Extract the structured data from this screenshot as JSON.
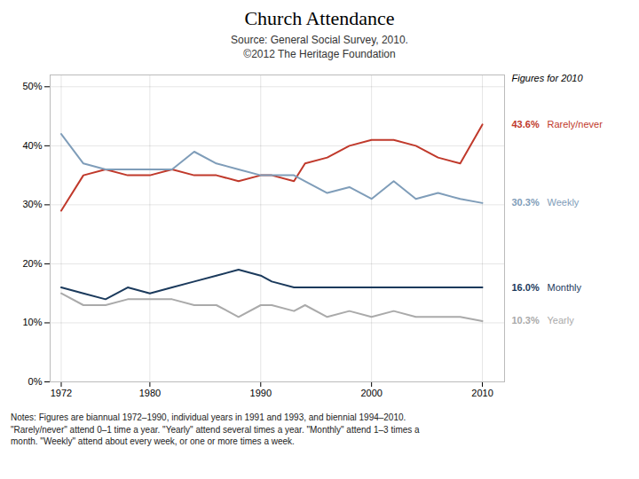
{
  "chart_data": {
    "type": "line",
    "title": "Church Attendance",
    "subtitle": [
      "Source: General Social Survey, 2010.",
      "©2012 The Heritage Foundation"
    ],
    "annotations": [
      "Figures for 2010"
    ],
    "caption": "Notes: Figures are biannual 1972–1990, individual years in 1991 and 1993, and biennial 1994–2010.\n\"Rarely/never\" attend 0–1 time a year. \"Yearly\" attend several times a year. \"Monthly\" attend 1–3 times a\nmonth. \"Weekly\" attend about every week, or one or more times a week.",
    "x": [
      1972,
      1974,
      1976,
      1978,
      1980,
      1982,
      1984,
      1986,
      1988,
      1990,
      1991,
      1993,
      1994,
      1996,
      1998,
      2000,
      2002,
      2004,
      2006,
      2008,
      2010
    ],
    "series": [
      {
        "name": "Rarely/never",
        "color": "#C0392B",
        "values": [
          29,
          35,
          36,
          35,
          35,
          36,
          35,
          35,
          34,
          35,
          35,
          34,
          37,
          38,
          40,
          41,
          41,
          40,
          38,
          37,
          43.6
        ],
        "value_labels": [
          null,
          null,
          null,
          null,
          null,
          null,
          null,
          null,
          null,
          null,
          null,
          null,
          null,
          null,
          null,
          null,
          null,
          null,
          null,
          null,
          "43.6%"
        ]
      },
      {
        "name": "Weekly",
        "color": "#7F9DB9",
        "values": [
          42,
          37,
          36,
          36,
          36,
          36,
          39,
          37,
          36,
          35,
          35,
          35,
          34,
          32,
          33,
          31,
          34,
          31,
          32,
          31,
          30.3
        ],
        "value_labels": [
          null,
          null,
          null,
          null,
          null,
          null,
          null,
          null,
          null,
          null,
          null,
          null,
          null,
          null,
          null,
          null,
          null,
          null,
          null,
          null,
          "30.3%"
        ]
      },
      {
        "name": "Monthly",
        "color": "#1B3A5C",
        "values": [
          16,
          15,
          14,
          16,
          15,
          16,
          17,
          18,
          19,
          18,
          17,
          16,
          16,
          16,
          16,
          16,
          16,
          16,
          16,
          16,
          16.0
        ],
        "value_labels": [
          null,
          null,
          null,
          null,
          null,
          null,
          null,
          null,
          null,
          null,
          null,
          null,
          null,
          null,
          null,
          null,
          null,
          null,
          null,
          null,
          "16.0%"
        ]
      },
      {
        "name": "Yearly",
        "color": "#AAAAAA",
        "values": [
          15,
          13,
          13,
          14,
          14,
          14,
          13,
          13,
          11,
          13,
          13,
          12,
          13,
          11,
          12,
          11,
          12,
          11,
          11,
          11,
          10.3
        ],
        "value_labels": [
          null,
          null,
          null,
          null,
          null,
          null,
          null,
          null,
          null,
          null,
          null,
          null,
          null,
          null,
          null,
          null,
          null,
          null,
          null,
          null,
          "10.3%"
        ]
      }
    ],
    "xlim": [
      1971,
      2012
    ],
    "xticks": [
      1972,
      1980,
      1990,
      2000,
      2010
    ],
    "ylim": [
      0,
      52
    ],
    "yticks": [
      {
        "value": 0,
        "label": "0%"
      },
      {
        "value": 10,
        "label": "10%"
      },
      {
        "value": 20,
        "label": "20%"
      },
      {
        "value": 30,
        "label": "30%"
      },
      {
        "value": 40,
        "label": "40%"
      },
      {
        "value": 50,
        "label": "50%"
      }
    ],
    "grid": true
  }
}
